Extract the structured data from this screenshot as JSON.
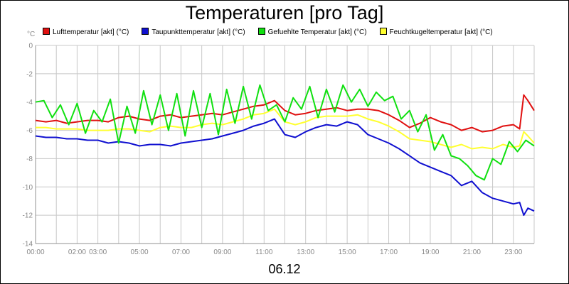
{
  "chart_data": {
    "type": "line",
    "title": "Temperaturen [pro Tag]",
    "unit": "°C",
    "date": "06.12",
    "ylim": [
      -14,
      0
    ],
    "yticks": [
      0,
      -2,
      -4,
      -6,
      -8,
      -10,
      -12,
      -14
    ],
    "xlim": [
      0,
      24
    ],
    "xticks": [
      {
        "h": 0,
        "label": "00:00"
      },
      {
        "h": 2,
        "label": "02:00"
      },
      {
        "h": 3,
        "label": "03:00"
      },
      {
        "h": 5,
        "label": "05:00"
      },
      {
        "h": 7,
        "label": "07:00"
      },
      {
        "h": 9,
        "label": "09:00"
      },
      {
        "h": 11,
        "label": "11:00"
      },
      {
        "h": 13,
        "label": "13:00"
      },
      {
        "h": 15,
        "label": "15:00"
      },
      {
        "h": 17,
        "label": "17:00"
      },
      {
        "h": 19,
        "label": "19:00"
      },
      {
        "h": 21,
        "label": "21:00"
      },
      {
        "h": 23,
        "label": "23:00"
      }
    ],
    "grid": true,
    "series": [
      {
        "name": "Lufttemperatur [akt] (°C)",
        "color": "#e01010",
        "x": [
          0,
          0.5,
          1,
          1.5,
          2,
          2.5,
          3,
          3.5,
          4,
          4.5,
          5,
          5.5,
          6,
          6.5,
          7,
          7.5,
          8,
          8.5,
          9,
          9.5,
          10,
          10.5,
          11,
          11.5,
          12,
          12.5,
          13,
          13.5,
          14,
          14.5,
          15,
          15.5,
          16,
          16.5,
          17,
          17.5,
          18,
          18.5,
          19,
          19.5,
          20,
          20.5,
          21,
          21.5,
          22,
          22.5,
          23,
          23.3,
          23.5,
          23.7,
          24
        ],
        "y": [
          -5.3,
          -5.4,
          -5.3,
          -5.5,
          -5.4,
          -5.3,
          -5.3,
          -5.4,
          -5.1,
          -5.0,
          -5.2,
          -5.3,
          -5.0,
          -4.9,
          -5.1,
          -5.0,
          -4.9,
          -4.8,
          -4.9,
          -4.7,
          -4.5,
          -4.3,
          -4.2,
          -3.9,
          -4.6,
          -4.9,
          -4.8,
          -4.6,
          -4.5,
          -4.4,
          -4.6,
          -4.5,
          -4.5,
          -4.6,
          -4.9,
          -5.3,
          -5.8,
          -5.5,
          -5.1,
          -5.4,
          -5.6,
          -6.0,
          -5.8,
          -6.1,
          -6.0,
          -5.7,
          -5.6,
          -5.9,
          -3.5,
          -3.9,
          -4.6
        ]
      },
      {
        "name": "Taupunkttemperatur [akt] (°C)",
        "color": "#1010d0",
        "x": [
          0,
          0.5,
          1,
          1.5,
          2,
          2.5,
          3,
          3.5,
          4,
          4.5,
          5,
          5.5,
          6,
          6.5,
          7,
          7.5,
          8,
          8.5,
          9,
          9.5,
          10,
          10.5,
          11,
          11.5,
          12,
          12.5,
          13,
          13.5,
          14,
          14.5,
          15,
          15.5,
          16,
          16.5,
          17,
          17.5,
          18,
          18.5,
          19,
          19.5,
          20,
          20.5,
          21,
          21.5,
          22,
          22.5,
          23,
          23.3,
          23.5,
          23.7,
          24
        ],
        "y": [
          -6.4,
          -6.5,
          -6.5,
          -6.6,
          -6.6,
          -6.7,
          -6.7,
          -6.9,
          -6.8,
          -6.9,
          -7.1,
          -7.0,
          -7.0,
          -7.1,
          -6.9,
          -6.8,
          -6.7,
          -6.6,
          -6.4,
          -6.2,
          -6.0,
          -5.7,
          -5.5,
          -5.2,
          -6.3,
          -6.5,
          -6.1,
          -5.8,
          -5.6,
          -5.7,
          -5.4,
          -5.6,
          -6.3,
          -6.6,
          -6.9,
          -7.3,
          -7.8,
          -8.3,
          -8.6,
          -8.9,
          -9.2,
          -9.9,
          -9.6,
          -10.4,
          -10.8,
          -11.0,
          -11.2,
          -11.1,
          -12.0,
          -11.5,
          -11.7
        ]
      },
      {
        "name": "Gefuehlte Temperatur [akt] (°C)",
        "color": "#10e010",
        "x": [
          0,
          0.4,
          0.8,
          1.2,
          1.6,
          2,
          2.4,
          2.8,
          3.2,
          3.6,
          4,
          4.4,
          4.8,
          5.2,
          5.6,
          6,
          6.4,
          6.8,
          7.2,
          7.6,
          8,
          8.4,
          8.8,
          9.2,
          9.6,
          10,
          10.4,
          10.8,
          11.2,
          11.6,
          12,
          12.4,
          12.8,
          13.2,
          13.6,
          14,
          14.4,
          14.8,
          15.2,
          15.6,
          16,
          16.4,
          16.8,
          17.2,
          17.6,
          18,
          18.4,
          18.8,
          19.2,
          19.6,
          20,
          20.4,
          20.8,
          21.2,
          21.6,
          22,
          22.4,
          22.8,
          23.2,
          23.6,
          24
        ],
        "y": [
          -4.0,
          -3.9,
          -5.1,
          -4.2,
          -5.6,
          -4.1,
          -6.2,
          -4.6,
          -5.4,
          -3.8,
          -6.9,
          -4.3,
          -6.2,
          -3.2,
          -5.6,
          -3.5,
          -6.0,
          -3.4,
          -6.4,
          -3.2,
          -5.8,
          -3.4,
          -6.3,
          -3.1,
          -5.5,
          -2.9,
          -5.2,
          -2.8,
          -4.6,
          -4.2,
          -5.4,
          -3.7,
          -4.5,
          -2.9,
          -5.1,
          -3.1,
          -4.7,
          -2.8,
          -4.0,
          -3.1,
          -4.3,
          -3.3,
          -3.9,
          -3.6,
          -5.2,
          -4.6,
          -6.1,
          -4.9,
          -7.4,
          -6.3,
          -7.8,
          -8.0,
          -8.5,
          -9.2,
          -9.5,
          -8.0,
          -8.4,
          -6.8,
          -7.5,
          -6.7,
          -7.1
        ]
      },
      {
        "name": "Feuchtkugeltemperatur [akt] (°C)",
        "color": "#ffff30",
        "x": [
          0,
          0.5,
          1,
          1.5,
          2,
          2.5,
          3,
          3.5,
          4,
          4.5,
          5,
          5.5,
          6,
          6.5,
          7,
          7.5,
          8,
          8.5,
          9,
          9.5,
          10,
          10.5,
          11,
          11.5,
          12,
          12.5,
          13,
          13.5,
          14,
          14.5,
          15,
          15.5,
          16,
          16.5,
          17,
          17.5,
          18,
          18.5,
          19,
          19.5,
          20,
          20.5,
          21,
          21.5,
          22,
          22.5,
          23,
          23.3,
          23.5,
          23.7,
          24
        ],
        "y": [
          -5.8,
          -5.8,
          -5.9,
          -5.9,
          -5.9,
          -6.0,
          -6.0,
          -6.0,
          -5.9,
          -5.9,
          -6.0,
          -6.1,
          -5.8,
          -5.7,
          -5.8,
          -5.8,
          -5.6,
          -5.5,
          -5.6,
          -5.4,
          -5.2,
          -4.9,
          -4.8,
          -4.5,
          -5.4,
          -5.6,
          -5.4,
          -5.1,
          -5.0,
          -5.0,
          -5.0,
          -4.9,
          -5.2,
          -5.4,
          -5.7,
          -6.1,
          -6.6,
          -6.7,
          -6.8,
          -7.0,
          -7.2,
          -7.0,
          -7.3,
          -7.2,
          -7.3,
          -7.0,
          -7.2,
          -7.1,
          -6.1,
          -6.4,
          -6.9
        ]
      }
    ]
  }
}
